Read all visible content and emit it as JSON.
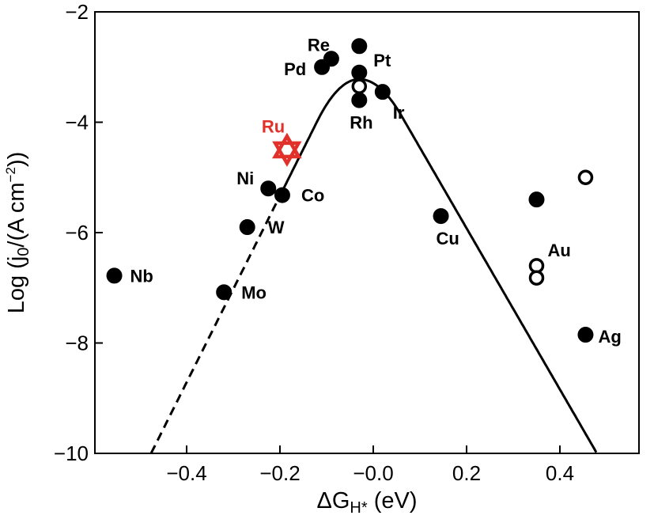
{
  "chart_data": {
    "type": "scatter",
    "title": "",
    "xlabel": "ΔG",
    "xlabel_sub": "H*",
    "xlabel_unit": " (eV)",
    "ylabel": "Log (j",
    "ylabel_sub": "0",
    "ylabel_rest": "/(A cm",
    "ylabel_sup": "−2",
    "ylabel_end": "))",
    "xlim": [
      -0.6,
      0.6
    ],
    "ylim": [
      -10,
      -2
    ],
    "x_ticks": [
      {
        "value": -0.4,
        "label": "−0.4"
      },
      {
        "value": -0.2,
        "label": "−0.2"
      },
      {
        "value": 0.0,
        "label": "−0.0"
      },
      {
        "value": 0.2,
        "label": "0.2"
      },
      {
        "value": 0.4,
        "label": "0.4"
      }
    ],
    "y_ticks": [
      {
        "value": -10,
        "label": "−10"
      },
      {
        "value": -8,
        "label": "−8"
      },
      {
        "value": -6,
        "label": "−6"
      },
      {
        "value": -4,
        "label": "−4"
      },
      {
        "value": -2,
        "label": "−2"
      }
    ],
    "grid": false,
    "legend": "none",
    "points": [
      {
        "label": "Nb",
        "x": -0.555,
        "y": -6.78,
        "fill": "filled",
        "label_dx": 20,
        "label_dy": 8
      },
      {
        "label": "Mo",
        "x": -0.32,
        "y": -7.08,
        "fill": "filled",
        "label_dx": 22,
        "label_dy": 8
      },
      {
        "label": "W",
        "x": -0.27,
        "y": -5.9,
        "fill": "filled",
        "label_dx": 26,
        "label_dy": 8
      },
      {
        "label": "Ni",
        "x": -0.225,
        "y": -5.2,
        "fill": "filled",
        "label_dx": -40,
        "label_dy": -5
      },
      {
        "label": "Co",
        "x": -0.195,
        "y": -5.32,
        "fill": "filled",
        "label_dx": 24,
        "label_dy": 8
      },
      {
        "label": "Pd",
        "x": -0.11,
        "y": -3.0,
        "fill": "filled",
        "label_dx": -48,
        "label_dy": 10
      },
      {
        "label": "Re",
        "x": -0.09,
        "y": -2.85,
        "fill": "filled",
        "label_dx": -30,
        "label_dy": -10
      },
      {
        "label": "Pt",
        "x": -0.03,
        "y": -2.62,
        "fill": "filled",
        "label_dx": 18,
        "label_dy": 26
      },
      {
        "label": "",
        "x": -0.03,
        "y": -3.1,
        "fill": "filled",
        "label_dx": 0,
        "label_dy": 0
      },
      {
        "label": "",
        "x": -0.03,
        "y": -3.35,
        "fill": "open",
        "label_dx": 0,
        "label_dy": 0
      },
      {
        "label": "Rh",
        "x": -0.03,
        "y": -3.6,
        "fill": "filled",
        "label_dx": -12,
        "label_dy": 36
      },
      {
        "label": "Ir",
        "x": 0.02,
        "y": -3.45,
        "fill": "filled",
        "label_dx": 13,
        "label_dy": 34
      },
      {
        "label": "Cu",
        "x": 0.145,
        "y": -5.7,
        "fill": "filled",
        "label_dx": -6,
        "label_dy": 36
      },
      {
        "label": "",
        "x": 0.35,
        "y": -5.4,
        "fill": "filled",
        "label_dx": 0,
        "label_dy": 0
      },
      {
        "label": "",
        "x": 0.455,
        "y": -5.0,
        "fill": "open",
        "label_dx": 0,
        "label_dy": 0
      },
      {
        "label": "Au",
        "x": 0.35,
        "y": -6.6,
        "fill": "open",
        "label_dx": 14,
        "label_dy": -12
      },
      {
        "label": "",
        "x": 0.35,
        "y": -6.82,
        "fill": "open",
        "label_dx": 0,
        "label_dy": 0
      },
      {
        "label": "Ag",
        "x": 0.455,
        "y": -7.85,
        "fill": "filled",
        "label_dx": 16,
        "label_dy": 10
      }
    ],
    "highlight": {
      "label": "Ru",
      "x": -0.185,
      "y": -4.5,
      "marker": "star",
      "color": "#e0312b"
    },
    "curve": {
      "peak_x": -0.03,
      "peak_y": -3.22,
      "left_slope": 16.9,
      "right_slope": 14.6,
      "dashed_below_y": -5.2,
      "color": "#000000"
    }
  }
}
